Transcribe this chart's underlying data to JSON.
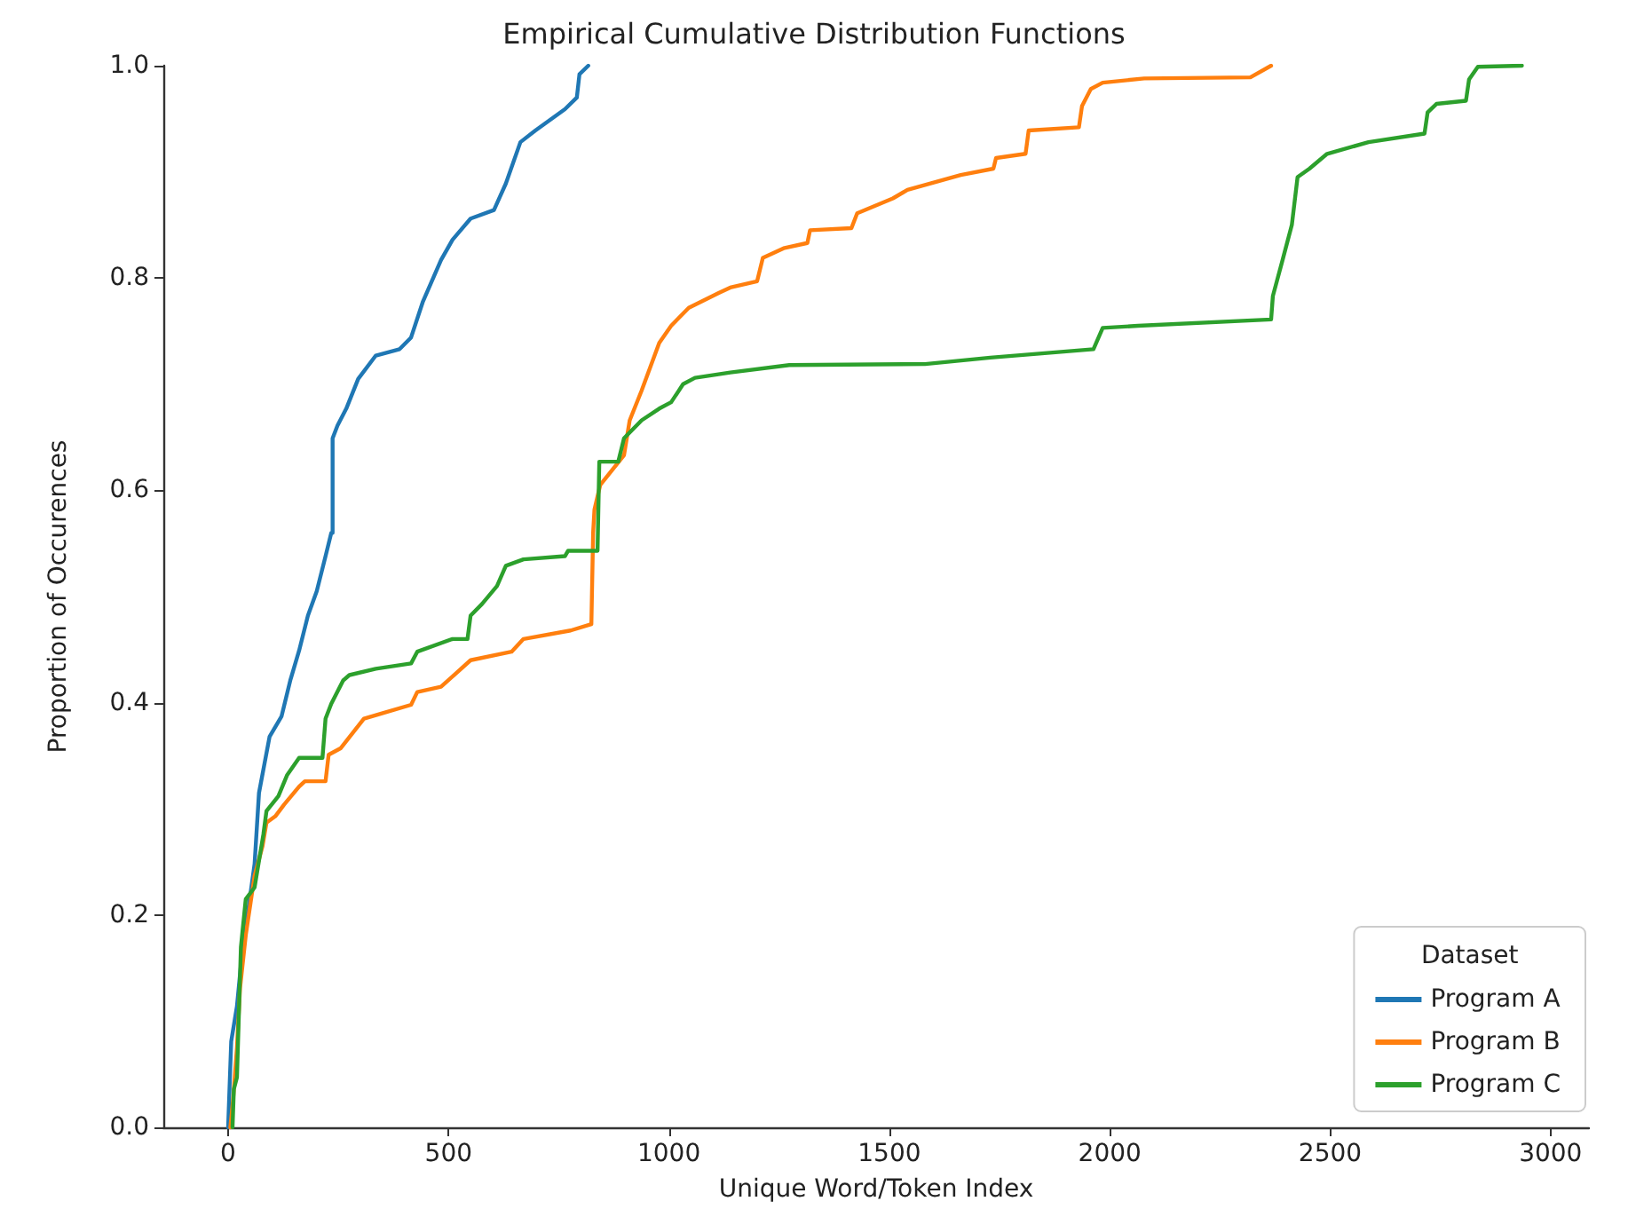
{
  "chart_data": {
    "type": "line",
    "title": "Empirical Cumulative Distribution Functions",
    "xlabel": "Unique Word/Token Index",
    "ylabel": "Proportion of Occurences",
    "legend_title": "Dataset",
    "legend": "bottom right",
    "grid": false,
    "xlim": [
      -147,
      3087
    ],
    "xticks": [
      0,
      500,
      1000,
      1500,
      2000,
      2500,
      3000
    ],
    "ylim": [
      0,
      1
    ],
    "yticks": [
      {
        "value": 0,
        "label": "0.0"
      },
      {
        "value": 0.2,
        "label": "0.2"
      },
      {
        "value": 0.4,
        "label": "0.4"
      },
      {
        "value": 0.6,
        "label": "0.6"
      },
      {
        "value": 0.8,
        "label": "0.8"
      },
      {
        "value": 1,
        "label": "1.0"
      }
    ],
    "series": [
      {
        "name": "Program A",
        "color": "#1f77b4",
        "x": [
          0,
          7,
          20,
          33,
          47,
          60,
          70,
          94,
          121,
          141,
          161,
          181,
          201,
          221,
          234,
          237,
          237,
          248,
          268,
          295,
          335,
          389,
          415,
          442,
          483,
          509,
          550,
          603,
          630,
          663,
          697,
          764,
          791,
          797,
          817
        ],
        "values": [
          0,
          0.081,
          0.114,
          0.17,
          0.209,
          0.248,
          0.315,
          0.368,
          0.387,
          0.421,
          0.449,
          0.482,
          0.505,
          0.538,
          0.56,
          0.56,
          0.649,
          0.661,
          0.677,
          0.705,
          0.727,
          0.733,
          0.744,
          0.778,
          0.817,
          0.836,
          0.856,
          0.864,
          0.889,
          0.928,
          0.939,
          0.959,
          0.97,
          0.992,
          1
        ]
      },
      {
        "name": "Program B",
        "color": "#ff7f0e",
        "x": [
          5,
          11,
          20,
          27,
          40,
          60,
          78,
          87,
          107,
          127,
          161,
          174,
          221,
          228,
          255,
          308,
          349,
          415,
          429,
          483,
          550,
          643,
          670,
          777,
          824,
          828,
          831,
          844,
          898,
          911,
          938,
          978,
          1005,
          1045,
          1113,
          1139,
          1200,
          1213,
          1260,
          1314,
          1320,
          1414,
          1427,
          1508,
          1541,
          1662,
          1736,
          1742,
          1809,
          1816,
          1930,
          1937,
          1957,
          1984,
          2078,
          2319,
          2366
        ],
        "values": [
          0,
          0.025,
          0.075,
          0.131,
          0.181,
          0.237,
          0.265,
          0.287,
          0.293,
          0.304,
          0.321,
          0.326,
          0.326,
          0.351,
          0.357,
          0.385,
          0.39,
          0.398,
          0.41,
          0.415,
          0.44,
          0.448,
          0.46,
          0.468,
          0.474,
          0.56,
          0.582,
          0.605,
          0.633,
          0.666,
          0.694,
          0.739,
          0.755,
          0.772,
          0.786,
          0.791,
          0.797,
          0.819,
          0.828,
          0.833,
          0.845,
          0.847,
          0.861,
          0.875,
          0.883,
          0.897,
          0.903,
          0.913,
          0.917,
          0.939,
          0.942,
          0.962,
          0.978,
          0.984,
          0.988,
          0.989,
          1
        ]
      },
      {
        "name": "Program C",
        "color": "#2ca02c",
        "x": [
          10,
          13,
          20,
          29,
          40,
          60,
          80,
          87,
          114,
          134,
          161,
          214,
          221,
          234,
          261,
          275,
          335,
          415,
          429,
          509,
          543,
          550,
          576,
          610,
          630,
          670,
          764,
          771,
          838,
          842,
          885,
          898,
          938,
          978,
          1005,
          1032,
          1059,
          1139,
          1273,
          1581,
          1729,
          1963,
          1984,
          2064,
          2366,
          2370,
          2392,
          2413,
          2426,
          2453,
          2493,
          2587,
          2714,
          2721,
          2741,
          2808,
          2815,
          2835,
          2935
        ],
        "values": [
          0,
          0.036,
          0.047,
          0.17,
          0.215,
          0.226,
          0.276,
          0.298,
          0.312,
          0.332,
          0.348,
          0.348,
          0.385,
          0.399,
          0.421,
          0.426,
          0.432,
          0.437,
          0.448,
          0.46,
          0.46,
          0.482,
          0.493,
          0.51,
          0.529,
          0.535,
          0.538,
          0.543,
          0.543,
          0.627,
          0.627,
          0.649,
          0.666,
          0.677,
          0.683,
          0.7,
          0.706,
          0.711,
          0.718,
          0.719,
          0.725,
          0.733,
          0.753,
          0.755,
          0.761,
          0.783,
          0.817,
          0.85,
          0.895,
          0.903,
          0.917,
          0.928,
          0.936,
          0.956,
          0.964,
          0.967,
          0.987,
          0.999,
          1
        ]
      }
    ]
  }
}
